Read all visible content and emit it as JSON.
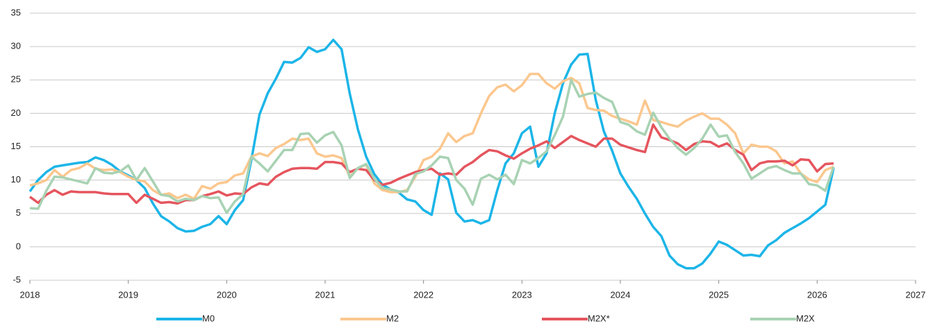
{
  "chart_data": {
    "type": "line",
    "x": [
      2018,
      2018.083,
      2018.167,
      2018.25,
      2018.333,
      2018.417,
      2018.5,
      2018.583,
      2018.667,
      2018.75,
      2018.833,
      2018.917,
      2019,
      2019.083,
      2019.167,
      2019.25,
      2019.333,
      2019.417,
      2019.5,
      2019.583,
      2019.667,
      2019.75,
      2019.833,
      2019.917,
      2020,
      2020.083,
      2020.167,
      2020.25,
      2020.333,
      2020.417,
      2020.5,
      2020.583,
      2020.667,
      2020.75,
      2020.833,
      2020.917,
      2021,
      2021.083,
      2021.167,
      2021.25,
      2021.333,
      2021.417,
      2021.5,
      2021.583,
      2021.667,
      2021.75,
      2021.833,
      2021.917,
      2022,
      2022.083,
      2022.167,
      2022.25,
      2022.333,
      2022.417,
      2022.5,
      2022.583,
      2022.667,
      2022.75,
      2022.833,
      2022.917,
      2023,
      2023.083,
      2023.167,
      2023.25,
      2023.333,
      2023.417,
      2023.5,
      2023.583,
      2023.667,
      2023.75,
      2023.833,
      2023.917,
      2024,
      2024.083,
      2024.167,
      2024.25,
      2024.333,
      2024.417,
      2024.5,
      2024.583,
      2024.667,
      2024.75,
      2024.833,
      2024.917,
      2025,
      2025.083,
      2025.167,
      2025.25,
      2025.333,
      2025.417,
      2025.5,
      2025.583,
      2025.667,
      2025.75,
      2025.833,
      2025.917,
      2026,
      2026.083,
      2026.167
    ],
    "series": [
      {
        "name": "M0",
        "color": "#1cb5e8",
        "values": [
          8.3,
          10,
          11.2,
          12,
          12.2,
          12.4,
          12.6,
          12.7,
          13.4,
          13.0,
          12.3,
          11.3,
          10.7,
          10,
          8.8,
          6.5,
          4.6,
          3.8,
          2.8,
          2.3,
          2.4,
          3.0,
          3.4,
          4.6,
          3.4,
          5.5,
          7.0,
          13,
          19.8,
          23.0,
          25.2,
          27.7,
          27.6,
          28.3,
          29.9,
          29.2,
          29.6,
          31.0,
          29.6,
          23,
          17.6,
          13.5,
          10.9,
          9.3,
          8.6,
          8.1,
          7.1,
          6.8,
          5.5,
          4.8,
          11,
          10.1,
          5.1,
          3.8,
          4.0,
          3.5,
          4.0,
          8.5,
          12.5,
          14,
          17,
          18,
          12,
          14,
          20,
          24.5,
          27.3,
          28.8,
          28.9,
          22,
          17.3,
          14.4,
          11,
          9,
          7.2,
          5,
          3,
          1.6,
          -1.3,
          -2.6,
          -3.2,
          -3.2,
          -2.5,
          -1.0,
          0.8,
          0.3,
          -0.5,
          -1.3,
          -1.2,
          -1.4,
          0.2,
          1.0,
          2.1,
          2.8,
          3.5,
          4.3,
          5.3,
          6.3,
          11.8
        ]
      },
      {
        "name": "M2",
        "color": "#fbc78e",
        "values": [
          9.2,
          9.5,
          10,
          11.5,
          10.5,
          11.5,
          11.8,
          12.5,
          11.7,
          11.5,
          11.6,
          11.2,
          10.5,
          10,
          9.8,
          8.5,
          7.8,
          8.0,
          7.3,
          7.8,
          7.2,
          9.1,
          8.7,
          9.5,
          9.7,
          10.7,
          11.0,
          13.5,
          14.0,
          13.6,
          14.8,
          15.4,
          16.2,
          16.0,
          16.2,
          14.0,
          13.5,
          13.7,
          13.3,
          10.5,
          11.8,
          12.3,
          9.5,
          8.5,
          8.2,
          8.2,
          8.5,
          10.5,
          13,
          13.5,
          14.7,
          17,
          15.7,
          16.6,
          17,
          20,
          22.6,
          23.9,
          24.3,
          23.3,
          24.2,
          25.9,
          25.9,
          24.5,
          23.7,
          24.8,
          25.3,
          24.5,
          20.8,
          20.5,
          20.4,
          19.6,
          19.2,
          18.8,
          18.3,
          21.9,
          19,
          18.7,
          18.3,
          18.0,
          18.9,
          19.5,
          20,
          19.2,
          19.2,
          18.3,
          17,
          14,
          15.3,
          15,
          15,
          14.3,
          12.5,
          12.8,
          11,
          10.1,
          9.7,
          11.5,
          12.0
        ]
      },
      {
        "name": "M2X*",
        "color": "#e5555e",
        "values": [
          7.5,
          6.6,
          7.8,
          8.5,
          7.8,
          8.3,
          8.2,
          8.2,
          8.2,
          8.0,
          7.9,
          7.9,
          7.9,
          6.6,
          7.8,
          7.2,
          6.6,
          6.7,
          6.5,
          7.0,
          7.0,
          7.6,
          7.9,
          8.3,
          7.7,
          8.0,
          7.9,
          8.9,
          9.5,
          9.3,
          10.5,
          11.2,
          11.7,
          11.8,
          11.8,
          11.7,
          12.7,
          12.7,
          12.5,
          11.2,
          11.7,
          11.5,
          10,
          9.3,
          9.6,
          10.2,
          10.7,
          11.2,
          11.5,
          11.7,
          10.8,
          11.0,
          10.8,
          12,
          12.7,
          13.7,
          14.5,
          14.3,
          13.7,
          13.2,
          14,
          14.7,
          15.2,
          15.8,
          14.8,
          15.7,
          16.6,
          16,
          15.5,
          15.0,
          16.2,
          16.2,
          15.3,
          14.9,
          14.5,
          14.2,
          18.3,
          16.4,
          16,
          15.5,
          14.5,
          15.4,
          15.8,
          15.7,
          15,
          15.5,
          14.5,
          13.8,
          11.5,
          12.5,
          12.8,
          12.8,
          12.9,
          12.2,
          13.1,
          13,
          11.3,
          12.4,
          12.5
        ]
      },
      {
        "name": "M2X",
        "color": "#a8d2b3",
        "values": [
          5.8,
          5.7,
          8.4,
          10.5,
          10.4,
          10.1,
          9.8,
          9.5,
          11.8,
          11.1,
          11.0,
          11.3,
          12.2,
          10.0,
          11.8,
          9.8,
          7.8,
          7.6,
          6.8,
          7.2,
          7.0,
          7.6,
          7.3,
          7.4,
          5.1,
          6.8,
          7.9,
          13.5,
          12.5,
          11.3,
          12.9,
          14.5,
          14.5,
          16.9,
          17.0,
          15.6,
          16.7,
          17.2,
          15.2,
          10.3,
          11.8,
          12.4,
          10.2,
          8.8,
          8.6,
          8.3,
          8.3,
          10.9,
          11.3,
          12.2,
          13.5,
          13.3,
          10,
          8.7,
          6.3,
          10.2,
          10.8,
          10.1,
          10.8,
          9.4,
          13,
          12.5,
          13.3,
          14.3,
          16.7,
          19.5,
          25,
          22.5,
          22.9,
          23.1,
          22.3,
          21.7,
          18.7,
          18.3,
          17.3,
          16.8,
          20.1,
          17.9,
          16.2,
          14.8,
          13.8,
          14.8,
          16.2,
          18.3,
          16.5,
          16.7,
          14.2,
          12.5,
          10.2,
          11,
          11.8,
          12.1,
          11.5,
          11,
          11,
          9.4,
          9.2,
          8.4,
          12.0
        ]
      }
    ],
    "xlim": [
      2018,
      2027
    ],
    "xticks": [
      2018,
      2019,
      2020,
      2021,
      2022,
      2023,
      2024,
      2025,
      2026,
      2027
    ],
    "ylim": [
      -5,
      35
    ],
    "yticks": [
      -5,
      0,
      5,
      10,
      15,
      20,
      25,
      30,
      35
    ],
    "grid": true,
    "legend": "bottom"
  }
}
